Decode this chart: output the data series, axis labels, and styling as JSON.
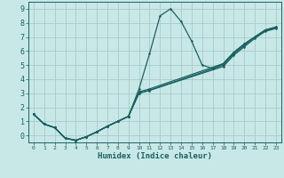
{
  "background_color": "#c8e8e8",
  "grid_color": "#aacaca",
  "line_color": "#1a6060",
  "xlabel": "Humidex (Indice chaleur)",
  "ylim": [
    -0.5,
    9.5
  ],
  "xlim": [
    -0.5,
    23.5
  ],
  "yticks": [
    0,
    1,
    2,
    3,
    4,
    5,
    6,
    7,
    8,
    9
  ],
  "xticks": [
    0,
    1,
    2,
    3,
    4,
    5,
    6,
    7,
    8,
    9,
    10,
    11,
    12,
    13,
    14,
    15,
    16,
    17,
    18,
    19,
    20,
    21,
    22,
    23
  ],
  "lines": [
    {
      "x": [
        0,
        1,
        2,
        3,
        4,
        5,
        6,
        7,
        8,
        9,
        10,
        11,
        12,
        13,
        14,
        15,
        16,
        17,
        18,
        19,
        20,
        21,
        22,
        23
      ],
      "y": [
        1.5,
        0.8,
        0.55,
        -0.2,
        -0.35,
        -0.1,
        0.25,
        0.65,
        1.0,
        1.35,
        3.3,
        5.8,
        8.5,
        9.0,
        8.1,
        6.7,
        5.0,
        4.75,
        5.1,
        5.9,
        6.5,
        7.0,
        7.5,
        7.7
      ]
    },
    {
      "x": [
        0,
        1,
        2,
        3,
        4,
        5,
        6,
        7,
        8,
        9,
        10,
        11,
        18,
        19,
        20,
        21,
        22,
        23
      ],
      "y": [
        1.5,
        0.8,
        0.55,
        -0.2,
        -0.35,
        -0.1,
        0.25,
        0.65,
        1.0,
        1.35,
        3.1,
        3.3,
        5.1,
        5.9,
        6.5,
        7.0,
        7.5,
        7.7
      ]
    },
    {
      "x": [
        0,
        1,
        2,
        3,
        4,
        5,
        6,
        7,
        8,
        9,
        10,
        11,
        18,
        19,
        20,
        21,
        22,
        23
      ],
      "y": [
        1.5,
        0.8,
        0.55,
        -0.2,
        -0.35,
        -0.1,
        0.25,
        0.65,
        1.0,
        1.35,
        3.0,
        3.2,
        5.0,
        5.8,
        6.4,
        7.0,
        7.45,
        7.65
      ]
    },
    {
      "x": [
        0,
        1,
        2,
        3,
        4,
        5,
        6,
        7,
        8,
        9,
        10,
        11,
        18,
        19,
        20,
        21,
        22,
        23
      ],
      "y": [
        1.5,
        0.8,
        0.55,
        -0.2,
        -0.35,
        -0.1,
        0.25,
        0.65,
        1.0,
        1.35,
        3.0,
        3.2,
        4.9,
        5.7,
        6.3,
        6.9,
        7.4,
        7.6
      ]
    }
  ]
}
